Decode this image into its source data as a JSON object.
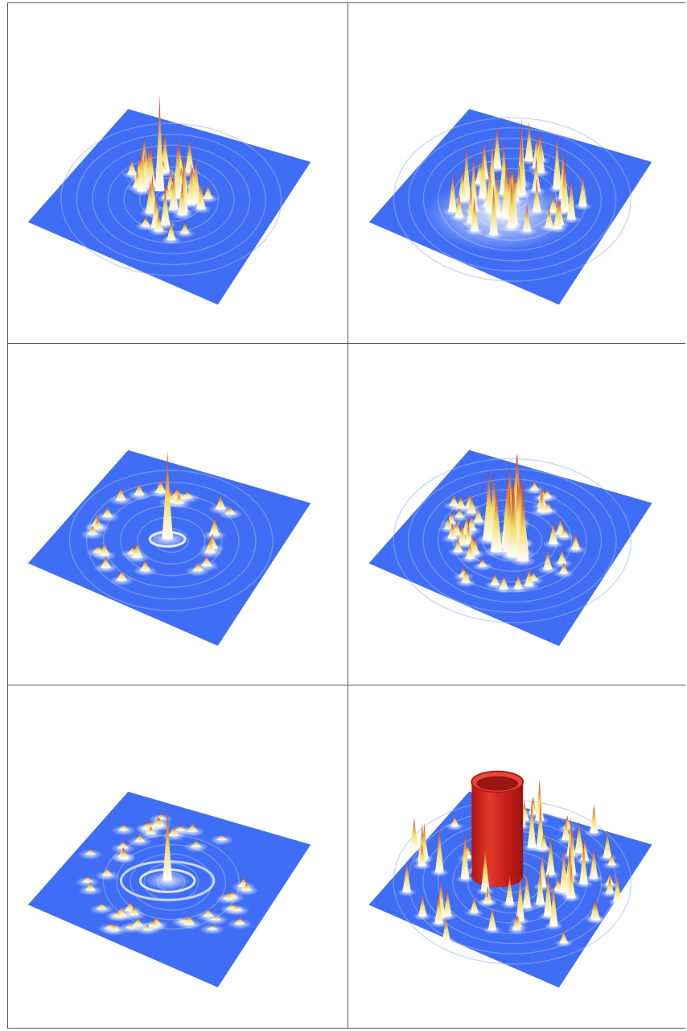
{
  "figure": {
    "layout": {
      "rows": 3,
      "columns": 2
    },
    "colors": {
      "base_surface": "#3f6df5",
      "peak_low": "#ffffff",
      "peak_mid": "#f2dd6a",
      "peak_high": "#c8201a"
    },
    "panels": [
      {
        "id": "row1-left",
        "pattern": "clustered-peaks"
      },
      {
        "id": "row1-right",
        "pattern": "elongated-ridge-cluster"
      },
      {
        "id": "row2-left",
        "pattern": "single-central-spike-with-ring"
      },
      {
        "id": "row2-right",
        "pattern": "tall-peak-cluster"
      },
      {
        "id": "row3-left",
        "pattern": "central-spike-concentric-rings"
      },
      {
        "id": "row3-right",
        "pattern": "cylinder-with-surrounding-peaks"
      }
    ]
  }
}
